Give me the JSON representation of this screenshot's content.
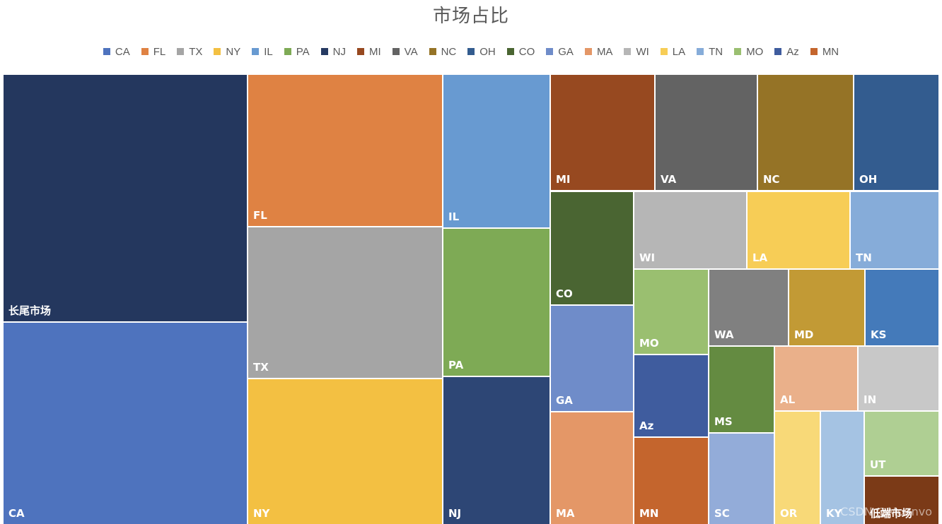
{
  "watermark": "CSDN @Mounvo",
  "chart_data": {
    "type": "treemap",
    "title": "市场占比",
    "legend_position": "top",
    "legend": [
      {
        "name": "CA",
        "color": "#4e73be"
      },
      {
        "name": "FL",
        "color": "#df8243"
      },
      {
        "name": "TX",
        "color": "#a5a5a5"
      },
      {
        "name": "NY",
        "color": "#f3c042"
      },
      {
        "name": "IL",
        "color": "#689ad1"
      },
      {
        "name": "PA",
        "color": "#7eaa55"
      },
      {
        "name": "NJ",
        "color": "#263a62"
      },
      {
        "name": "MI",
        "color": "#974920"
      },
      {
        "name": "VA",
        "color": "#636363"
      },
      {
        "name": "NC",
        "color": "#957326"
      },
      {
        "name": "OH",
        "color": "#335c8f"
      },
      {
        "name": "CO",
        "color": "#4a6532"
      },
      {
        "name": "GA",
        "color": "#6f8cc9"
      },
      {
        "name": "MA",
        "color": "#e49767"
      },
      {
        "name": "WI",
        "color": "#b6b6b6"
      },
      {
        "name": "LA",
        "color": "#f7cd56"
      },
      {
        "name": "TN",
        "color": "#86acd9"
      },
      {
        "name": "MO",
        "color": "#9abf70"
      },
      {
        "name": "Az",
        "color": "#3f5c9e"
      },
      {
        "name": "MN",
        "color": "#c4652d"
      }
    ],
    "tiles": [
      {
        "name": "长尾市场",
        "color": "#24375e"
      },
      {
        "name": "CA",
        "color": "#4e73be"
      },
      {
        "name": "FL",
        "color": "#df8243"
      },
      {
        "name": "TX",
        "color": "#a5a5a5"
      },
      {
        "name": "NY",
        "color": "#f3c042"
      },
      {
        "name": "IL",
        "color": "#689ad1"
      },
      {
        "name": "PA",
        "color": "#7eaa55"
      },
      {
        "name": "NJ",
        "color": "#2d4675"
      },
      {
        "name": "MI",
        "color": "#974920"
      },
      {
        "name": "VA",
        "color": "#636363"
      },
      {
        "name": "NC",
        "color": "#957326"
      },
      {
        "name": "OH",
        "color": "#335c8f"
      },
      {
        "name": "CO",
        "color": "#4a6532"
      },
      {
        "name": "WI",
        "color": "#b6b6b6"
      },
      {
        "name": "LA",
        "color": "#f7cd56"
      },
      {
        "name": "TN",
        "color": "#86acd9"
      },
      {
        "name": "GA",
        "color": "#6f8cc9"
      },
      {
        "name": "MO",
        "color": "#9abf70"
      },
      {
        "name": "WA",
        "color": "#808080"
      },
      {
        "name": "MD",
        "color": "#c29a35"
      },
      {
        "name": "KS",
        "color": "#447aba"
      },
      {
        "name": "Az",
        "color": "#3f5c9e"
      },
      {
        "name": "MS",
        "color": "#648b41"
      },
      {
        "name": "AL",
        "color": "#eab08a"
      },
      {
        "name": "IN",
        "color": "#c8c8c8"
      },
      {
        "name": "MA",
        "color": "#e49767"
      },
      {
        "name": "MN",
        "color": "#c4652d"
      },
      {
        "name": "SC",
        "color": "#93acd9"
      },
      {
        "name": "OR",
        "color": "#f8d978"
      },
      {
        "name": "KY",
        "color": "#a5c3e3"
      },
      {
        "name": "UT",
        "color": "#afcf93"
      },
      {
        "name": "低端市场",
        "color": "#7b3a17"
      }
    ]
  }
}
